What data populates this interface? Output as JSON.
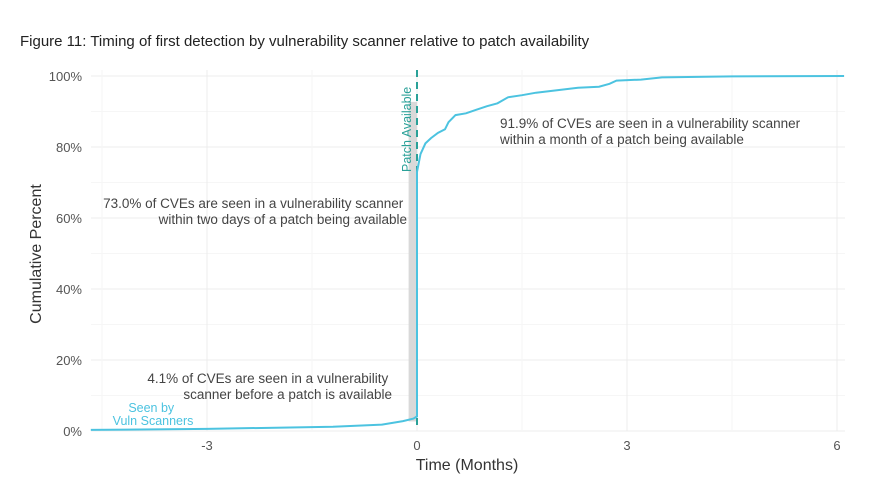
{
  "chart_data": {
    "type": "line",
    "title": "Figure 11: Timing of first detection by vulnerability scanner relative to patch availability",
    "xlabel": "Time (Months)",
    "ylabel": "Cumulative Percent",
    "xlim": [
      -4.66,
      6.1
    ],
    "ylim": [
      0,
      100
    ],
    "x_ticks": [
      -3,
      0,
      3,
      6
    ],
    "x_tick_labels": [
      "-3",
      "0",
      "3",
      "6"
    ],
    "y_ticks": [
      0,
      20,
      40,
      60,
      80,
      100
    ],
    "y_tick_labels": [
      "0%",
      "20%",
      "40%",
      "60%",
      "80%",
      "100%"
    ],
    "grid": true,
    "series": [
      {
        "name": "Seen by Vuln Scanners",
        "label_lines": [
          "Seen by",
          "Vuln Scanners"
        ],
        "color": "#4cc3e0",
        "x": [
          -4.66,
          -3,
          -1.2,
          -0.5,
          -0.2,
          -0.05,
          0,
          0,
          0.05,
          0.12,
          0.2,
          0.3,
          0.4,
          0.45,
          0.55,
          0.7,
          0.85,
          1.0,
          1.15,
          1.3,
          1.5,
          1.7,
          2.0,
          2.3,
          2.6,
          2.75,
          2.85,
          3.2,
          3.5,
          4.5,
          6.1
        ],
        "y": [
          0.3,
          0.6,
          1.2,
          1.8,
          2.8,
          3.5,
          4.1,
          73.0,
          78.0,
          81.0,
          82.5,
          84.0,
          85.0,
          87.0,
          89.0,
          89.5,
          90.5,
          91.5,
          92.3,
          94.0,
          94.6,
          95.3,
          96.0,
          96.7,
          97.0,
          97.8,
          98.7,
          99.0,
          99.6,
          99.9,
          100
        ]
      }
    ],
    "reference_line": {
      "x": 0,
      "label": "Patch Available",
      "color": "#2aa198"
    },
    "shaded_band": {
      "x": [
        -0.12,
        0
      ],
      "y": [
        4.1,
        73.0
      ]
    },
    "annotations": [
      {
        "lines": [
          "91.9% of CVEs are seen in a vulnerability scanner",
          "within a month of a patch being available"
        ]
      },
      {
        "lines": [
          "73.0% of CVEs are seen in a vulnerability scanner",
          "within two days of a patch being available"
        ]
      },
      {
        "lines": [
          "4.1% of CVEs are seen in a vulnerability",
          "scanner before a patch is available"
        ]
      }
    ]
  }
}
